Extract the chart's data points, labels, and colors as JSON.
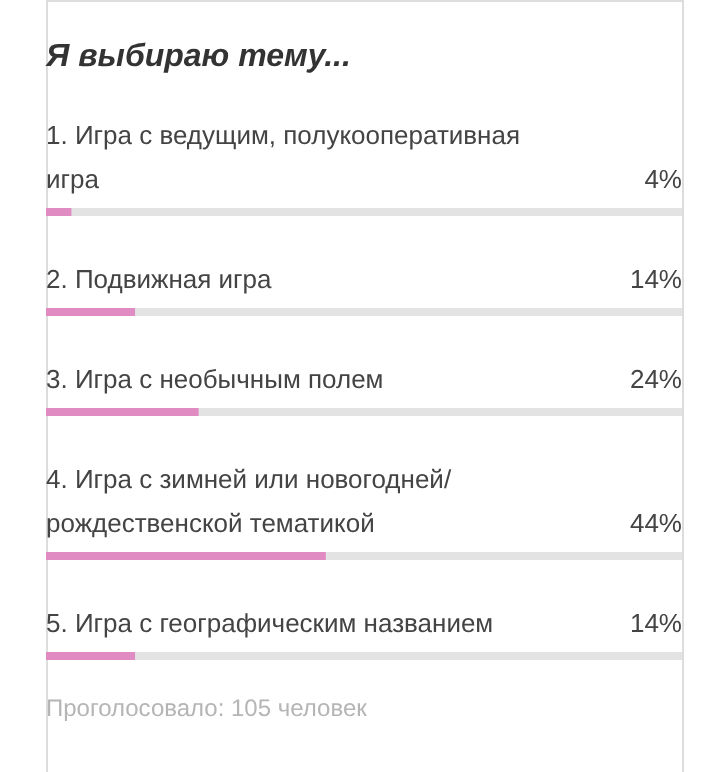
{
  "chart_data": {
    "type": "bar",
    "orientation": "horizontal",
    "title": "Я выбираю тему...",
    "categories": [
      "1. Игра с ведущим, полукооперативная игра",
      "2. Подвижная игра",
      "3. Игра с необычным полем",
      "4. Игра с зимней или новогодней/рождественской тематикой",
      "5. Игра с географическим названием"
    ],
    "values": [
      4,
      14,
      24,
      44,
      14
    ],
    "value_labels": [
      "4%",
      "14%",
      "24%",
      "44%",
      "14%"
    ],
    "color": "#e08cc2",
    "xlim": [
      0,
      100
    ],
    "tick_labels": false,
    "annotations": [
      "Проголосовало: 105 человек"
    ]
  }
}
